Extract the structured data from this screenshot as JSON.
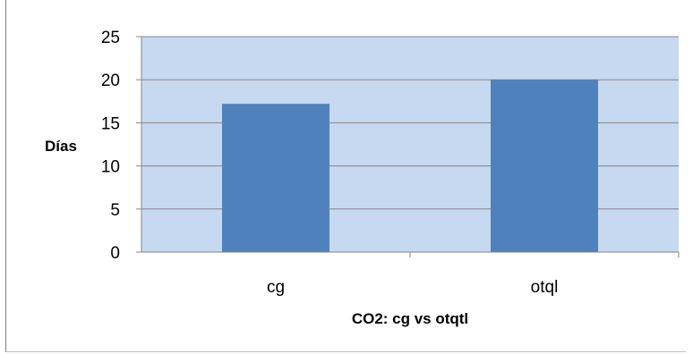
{
  "chart_data": {
    "type": "bar",
    "categories": [
      "cg",
      "otql"
    ],
    "values": [
      17.2,
      20
    ],
    "title": "",
    "xlabel": "CO2: cg vs otqtl",
    "ylabel": "Días",
    "ylim": [
      0,
      25
    ],
    "yticks": [
      "0",
      "5",
      "10",
      "15",
      "20",
      "25"
    ],
    "grid": true,
    "legend": "none",
    "colors": {
      "plot_background": "#c6d9f1",
      "bar": "#4f81bd",
      "gridline": "#868686"
    }
  }
}
